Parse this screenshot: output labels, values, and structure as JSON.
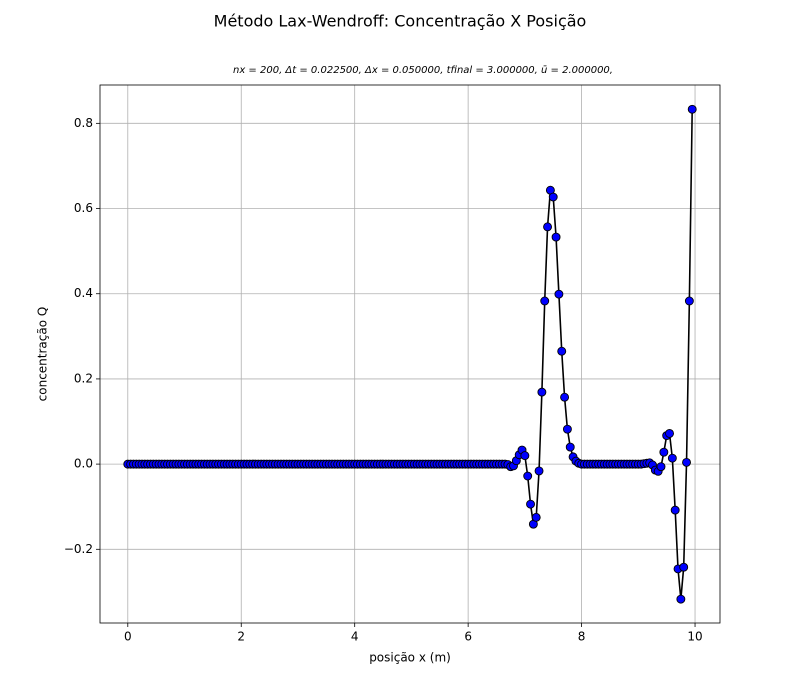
{
  "chart_data": {
    "type": "line",
    "title": "Método Lax-Wendroff: Concentração X Posição",
    "subtitle": "nx = 200, Δt = 0.022500, Δx = 0.050000, tfinal = 3.000000, ū = 2.000000,",
    "xlabel": "posição x (m)",
    "ylabel": "concentração Q",
    "x": [
      0,
      0.05,
      0.1,
      0.15,
      0.2,
      0.25,
      0.3,
      0.35,
      0.4,
      0.45,
      0.5,
      0.55,
      0.6,
      0.65,
      0.7,
      0.75,
      0.8,
      0.85,
      0.9,
      0.95,
      1,
      1.05,
      1.1,
      1.15,
      1.2,
      1.25,
      1.3,
      1.35,
      1.4,
      1.45,
      1.5,
      1.55,
      1.6,
      1.65,
      1.7,
      1.75,
      1.8,
      1.85,
      1.9,
      1.95,
      2,
      2.05,
      2.1,
      2.15,
      2.2,
      2.25,
      2.3,
      2.35,
      2.4,
      2.45,
      2.5,
      2.55,
      2.6,
      2.65,
      2.7,
      2.75,
      2.8,
      2.85,
      2.9,
      2.95,
      3,
      3.05,
      3.1,
      3.15,
      3.2,
      3.25,
      3.3,
      3.35,
      3.4,
      3.45,
      3.5,
      3.55,
      3.6,
      3.65,
      3.7,
      3.75,
      3.8,
      3.85,
      3.9,
      3.95,
      4,
      4.05,
      4.1,
      4.15,
      4.2,
      4.25,
      4.3,
      4.35,
      4.4,
      4.45,
      4.5,
      4.55,
      4.6,
      4.65,
      4.7,
      4.75,
      4.8,
      4.85,
      4.9,
      4.95,
      5,
      5.05,
      5.1,
      5.15,
      5.2,
      5.25,
      5.3,
      5.35,
      5.4,
      5.45,
      5.5,
      5.55,
      5.6,
      5.65,
      5.7,
      5.75,
      5.8,
      5.85,
      5.9,
      5.95,
      6,
      6.05,
      6.1,
      6.15,
      6.2,
      6.25,
      6.3,
      6.35,
      6.4,
      6.45,
      6.5,
      6.55,
      6.6,
      6.65,
      6.7,
      6.75,
      6.8,
      6.85,
      6.9,
      6.95,
      7,
      7.05,
      7.1,
      7.15,
      7.2,
      7.25,
      7.3,
      7.35,
      7.4,
      7.45,
      7.5,
      7.55,
      7.6,
      7.65,
      7.7,
      7.75,
      7.8,
      7.85,
      7.9,
      7.95,
      8,
      8.05,
      8.1,
      8.15,
      8.2,
      8.25,
      8.3,
      8.35,
      8.4,
      8.45,
      8.5,
      8.55,
      8.6,
      8.65,
      8.7,
      8.75,
      8.8,
      8.85,
      8.9,
      8.95,
      9,
      9.05,
      9.1,
      9.15,
      9.2,
      9.25,
      9.3,
      9.35,
      9.4,
      9.45,
      9.5,
      9.55,
      9.6,
      9.65,
      9.7,
      9.75,
      9.8,
      9.85,
      9.9,
      9.95
    ],
    "series": [
      {
        "color": "#0000ff",
        "values": [
          0,
          0,
          0,
          0,
          0,
          0,
          0,
          0,
          0,
          0,
          0,
          0,
          0,
          0,
          0,
          0,
          0,
          0,
          0,
          0,
          0,
          0,
          0,
          0,
          0,
          0,
          0,
          0,
          0,
          0,
          0,
          0,
          0,
          0,
          0,
          0,
          0,
          0,
          0,
          0,
          0,
          0,
          0,
          0,
          0,
          0,
          0,
          0,
          0,
          0,
          0,
          0,
          0,
          0,
          0,
          0,
          0,
          0,
          0,
          0,
          0,
          0,
          0,
          0,
          0,
          0,
          0,
          0,
          0,
          0,
          0,
          0,
          0,
          0,
          0,
          0,
          0,
          0,
          0,
          0,
          0,
          0,
          0,
          0,
          0,
          0,
          0,
          0,
          0,
          0,
          0,
          0,
          0,
          0,
          0,
          0,
          0,
          0,
          0,
          0,
          0,
          0,
          0,
          0,
          0,
          0,
          0,
          0,
          0,
          0,
          0,
          0,
          0,
          0,
          0,
          0,
          0,
          0,
          0,
          0,
          0,
          0,
          0,
          0,
          0,
          0,
          0,
          0,
          0,
          0,
          0,
          0,
          0,
          0,
          -0.001,
          -0.006,
          -0.004,
          0.008,
          0.022,
          0.033,
          0.02,
          -0.028,
          -0.094,
          -0.141,
          -0.125,
          -0.016,
          0.169,
          0.383,
          0.557,
          0.643,
          0.627,
          0.533,
          0.399,
          0.265,
          0.157,
          0.082,
          0.04,
          0.017,
          0.007,
          0.002,
          0,
          0,
          0,
          0,
          0,
          0,
          0,
          0,
          0,
          0,
          0,
          0,
          0,
          0,
          0,
          0,
          0,
          0,
          0,
          0,
          0,
          0,
          0.001,
          0.002,
          0.003,
          -0.002,
          -0.014,
          -0.017,
          -0.006,
          0.028,
          0.067,
          0.072,
          0.014,
          -0.108,
          -0.246,
          -0.317,
          -0.242,
          0.004,
          0.383,
          0.833
        ]
      }
    ],
    "xlim": [
      -0.49,
      10.44
    ],
    "ylim": [
      -0.373,
      0.89
    ],
    "xticks": [
      0,
      2,
      4,
      6,
      8,
      10
    ],
    "yticks": [
      {
        "value": -0.2,
        "label": "−0.2"
      },
      {
        "value": 0,
        "label": "0.0"
      },
      0.2,
      0.4,
      0.6,
      0.8
    ],
    "grid": true
  }
}
